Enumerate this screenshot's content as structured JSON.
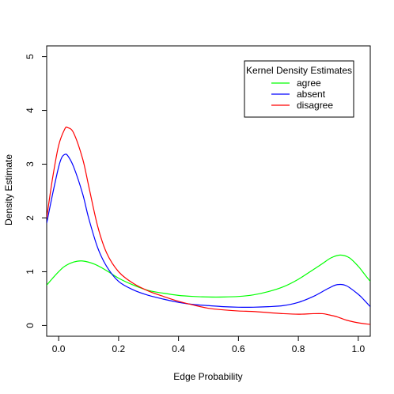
{
  "chart_data": {
    "type": "line",
    "title": "",
    "xlabel": "Edge Probability",
    "ylabel": "Density Estimate",
    "xlim": [
      -0.04,
      1.04
    ],
    "ylim": [
      -0.2,
      5.2
    ],
    "xticks": [
      0.0,
      0.2,
      0.4,
      0.6,
      0.8,
      1.0
    ],
    "xtick_labels": [
      "0.0",
      "0.2",
      "0.4",
      "0.6",
      "0.8",
      "1.0"
    ],
    "yticks": [
      0,
      1,
      2,
      3,
      4,
      5
    ],
    "ytick_labels": [
      "0",
      "1",
      "2",
      "3",
      "4",
      "5"
    ],
    "grid": false,
    "legend": {
      "title": "Kernel Density Estimates",
      "placement": "top-right"
    },
    "series": [
      {
        "name": "agree",
        "color": "#00ff00",
        "points": [
          [
            -0.04,
            0.75
          ],
          [
            -0.02,
            0.88
          ],
          [
            0.0,
            1.0
          ],
          [
            0.02,
            1.1
          ],
          [
            0.05,
            1.18
          ],
          [
            0.08,
            1.2
          ],
          [
            0.12,
            1.14
          ],
          [
            0.16,
            1.02
          ],
          [
            0.2,
            0.88
          ],
          [
            0.25,
            0.75
          ],
          [
            0.3,
            0.65
          ],
          [
            0.35,
            0.6
          ],
          [
            0.4,
            0.56
          ],
          [
            0.45,
            0.54
          ],
          [
            0.5,
            0.53
          ],
          [
            0.55,
            0.53
          ],
          [
            0.6,
            0.54
          ],
          [
            0.65,
            0.57
          ],
          [
            0.7,
            0.63
          ],
          [
            0.75,
            0.72
          ],
          [
            0.8,
            0.86
          ],
          [
            0.85,
            1.04
          ],
          [
            0.88,
            1.15
          ],
          [
            0.91,
            1.26
          ],
          [
            0.94,
            1.31
          ],
          [
            0.97,
            1.26
          ],
          [
            1.0,
            1.1
          ],
          [
            1.02,
            0.96
          ],
          [
            1.04,
            0.82
          ]
        ]
      },
      {
        "name": "absent",
        "color": "#0000ff",
        "points": [
          [
            -0.04,
            1.9
          ],
          [
            -0.02,
            2.45
          ],
          [
            0.0,
            2.95
          ],
          [
            0.01,
            3.12
          ],
          [
            0.02,
            3.18
          ],
          [
            0.03,
            3.16
          ],
          [
            0.05,
            2.95
          ],
          [
            0.08,
            2.45
          ],
          [
            0.1,
            2.0
          ],
          [
            0.13,
            1.45
          ],
          [
            0.16,
            1.1
          ],
          [
            0.2,
            0.82
          ],
          [
            0.25,
            0.66
          ],
          [
            0.3,
            0.56
          ],
          [
            0.35,
            0.49
          ],
          [
            0.4,
            0.43
          ],
          [
            0.45,
            0.39
          ],
          [
            0.5,
            0.37
          ],
          [
            0.55,
            0.35
          ],
          [
            0.6,
            0.34
          ],
          [
            0.65,
            0.34
          ],
          [
            0.7,
            0.35
          ],
          [
            0.75,
            0.37
          ],
          [
            0.8,
            0.43
          ],
          [
            0.85,
            0.54
          ],
          [
            0.9,
            0.69
          ],
          [
            0.93,
            0.76
          ],
          [
            0.96,
            0.74
          ],
          [
            1.0,
            0.58
          ],
          [
            1.02,
            0.47
          ],
          [
            1.04,
            0.35
          ]
        ]
      },
      {
        "name": "disagree",
        "color": "#ff0000",
        "points": [
          [
            -0.04,
            2.0
          ],
          [
            -0.02,
            2.75
          ],
          [
            0.0,
            3.35
          ],
          [
            0.02,
            3.65
          ],
          [
            0.03,
            3.68
          ],
          [
            0.05,
            3.58
          ],
          [
            0.08,
            3.1
          ],
          [
            0.1,
            2.6
          ],
          [
            0.13,
            1.85
          ],
          [
            0.16,
            1.35
          ],
          [
            0.2,
            1.0
          ],
          [
            0.25,
            0.78
          ],
          [
            0.3,
            0.64
          ],
          [
            0.35,
            0.54
          ],
          [
            0.4,
            0.45
          ],
          [
            0.45,
            0.38
          ],
          [
            0.5,
            0.32
          ],
          [
            0.55,
            0.29
          ],
          [
            0.6,
            0.27
          ],
          [
            0.65,
            0.26
          ],
          [
            0.7,
            0.24
          ],
          [
            0.75,
            0.22
          ],
          [
            0.8,
            0.21
          ],
          [
            0.85,
            0.22
          ],
          [
            0.88,
            0.22
          ],
          [
            0.9,
            0.2
          ],
          [
            0.93,
            0.16
          ],
          [
            0.96,
            0.1
          ],
          [
            1.0,
            0.05
          ],
          [
            1.04,
            0.02
          ]
        ]
      }
    ]
  }
}
